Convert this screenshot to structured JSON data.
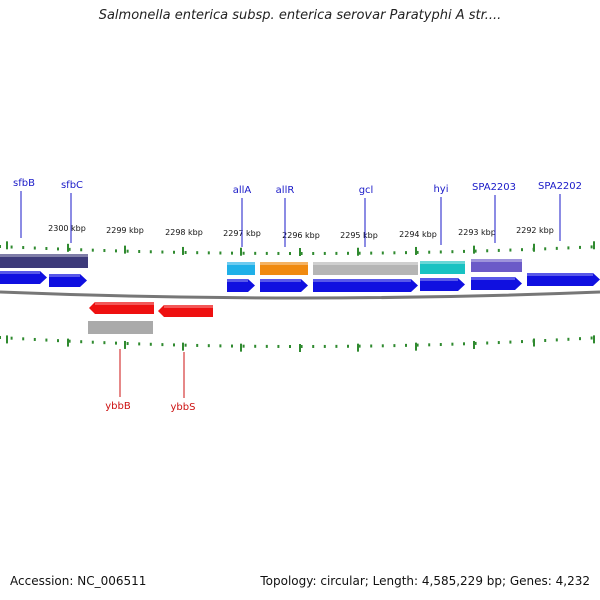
{
  "title": "Salmonella enterica subsp. enterica serovar Paratyphi A str....",
  "footer": {
    "accession": "Accession: NC_006511",
    "summary": "Topology: circular; Length: 4,585,229 bp; Genes: 4,232"
  },
  "colors": {
    "cds": "#1010e0",
    "reverse_cds": "#ee1010",
    "label_forward": "#1a1ac8",
    "label_reverse": "#cc1111",
    "tick": "#2f8a2f",
    "backbone": "#777777"
  },
  "kbp_labels": [
    "2300 kbp",
    "2299 kbp",
    "2298 kbp",
    "2297 kbp",
    "2296 kbp",
    "2295 kbp",
    "2294 kbp",
    "2293 kbp",
    "2292 kbp"
  ],
  "forward_labels": [
    "sfbB",
    "sfbC",
    "allA",
    "allR",
    "gcl",
    "hyi",
    "SPA2203",
    "SPA2202"
  ],
  "reverse_labels": [
    "ybbB",
    "ybbS"
  ]
}
